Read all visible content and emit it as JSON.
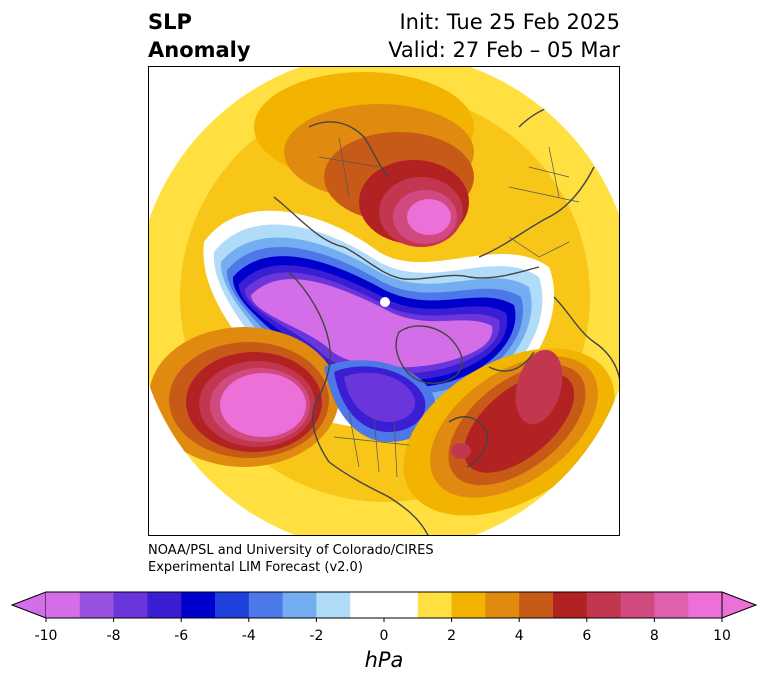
{
  "title": {
    "left_line1": "SLP",
    "left_line2": "Anomaly",
    "init": "Init: Tue 25 Feb 2025",
    "valid": "Valid: 27 Feb – 05 Mar"
  },
  "credit": {
    "line1": "NOAA/PSL and University of Colorado/CIRES",
    "line2": "Experimental LIM Forecast (v2.0)"
  },
  "colorbar": {
    "label": "hPa",
    "ticks": [
      "-10",
      "-8",
      "-6",
      "-4",
      "-2",
      "0",
      "2",
      "4",
      "6",
      "8",
      "10"
    ],
    "colors": [
      "#d46ee8",
      "#9a50e0",
      "#6a36dc",
      "#3a1ed4",
      "#0000cc",
      "#2040dc",
      "#4d78e8",
      "#74aef0",
      "#b0dcfa",
      "#ffffff",
      "#ffffff",
      "#ffe040",
      "#f2b400",
      "#e08a10",
      "#c85a18",
      "#b22222",
      "#c23650",
      "#d04a80",
      "#e060b0",
      "#ec70d8"
    ]
  },
  "map": {
    "projection": "polar stereographic (North Pole)",
    "field": "sea level pressure anomaly"
  }
}
